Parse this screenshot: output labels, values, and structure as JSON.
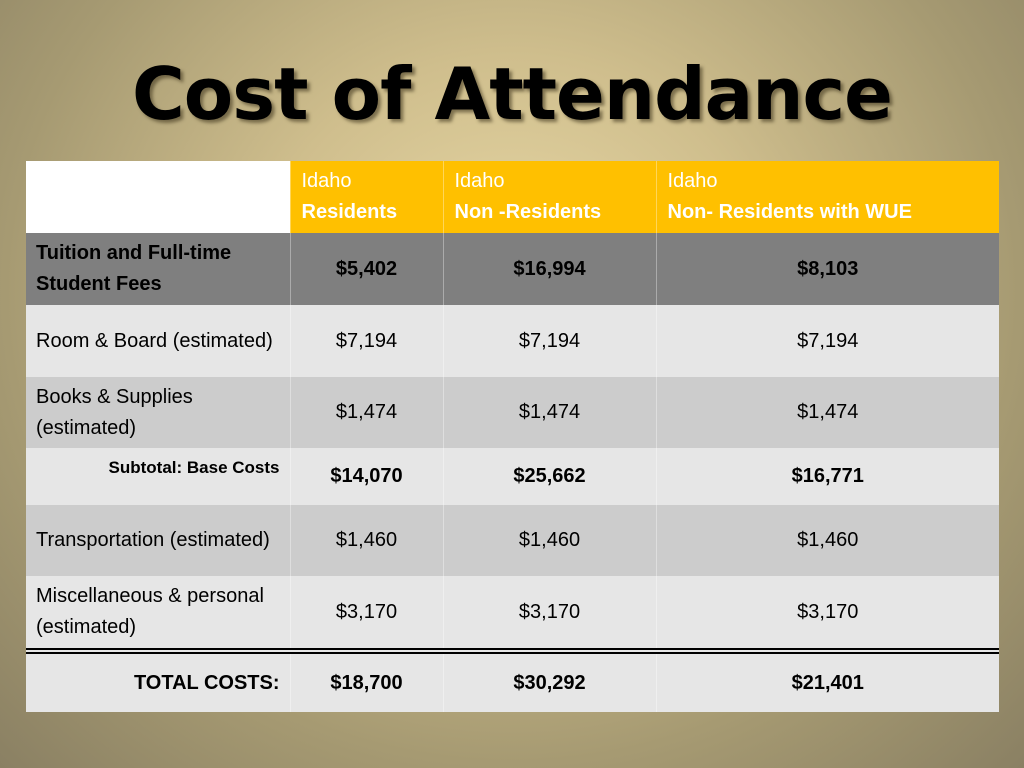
{
  "title": "Cost of Attendance",
  "columns": [
    {
      "line1": "Idaho",
      "line2": "Residents"
    },
    {
      "line1": "Idaho",
      "line2": "Non -Residents"
    },
    {
      "line1": "Idaho",
      "line2": "Non- Residents with WUE"
    }
  ],
  "rows": [
    {
      "label": "Tuition and Full-time Student Fees",
      "values": [
        "$5,402",
        "$16,994",
        "$8,103"
      ]
    },
    {
      "label": "Room & Board (estimated)",
      "values": [
        "$7,194",
        "$7,194",
        "$7,194"
      ]
    },
    {
      "label": "Books & Supplies (estimated)",
      "values": [
        "$1,474",
        "$1,474",
        "$1,474"
      ]
    },
    {
      "label": "Subtotal: Base Costs",
      "values": [
        "$14,070",
        "$25,662",
        "$16,771"
      ]
    },
    {
      "label": "Transportation (estimated)",
      "values": [
        "$1,460",
        "$1,460",
        "$1,460"
      ]
    },
    {
      "label": "Miscellaneous & personal (estimated)",
      "values": [
        "$3,170",
        "$3,170",
        "$3,170"
      ]
    },
    {
      "label": "TOTAL COSTS:",
      "values": [
        "$18,700",
        "$30,292",
        "$21,401"
      ]
    }
  ],
  "colors": {
    "header": "#ffc000",
    "tuition_row": "#7f7f7f",
    "light_row": "#e6e6e6",
    "dark_row": "#cccccc"
  }
}
